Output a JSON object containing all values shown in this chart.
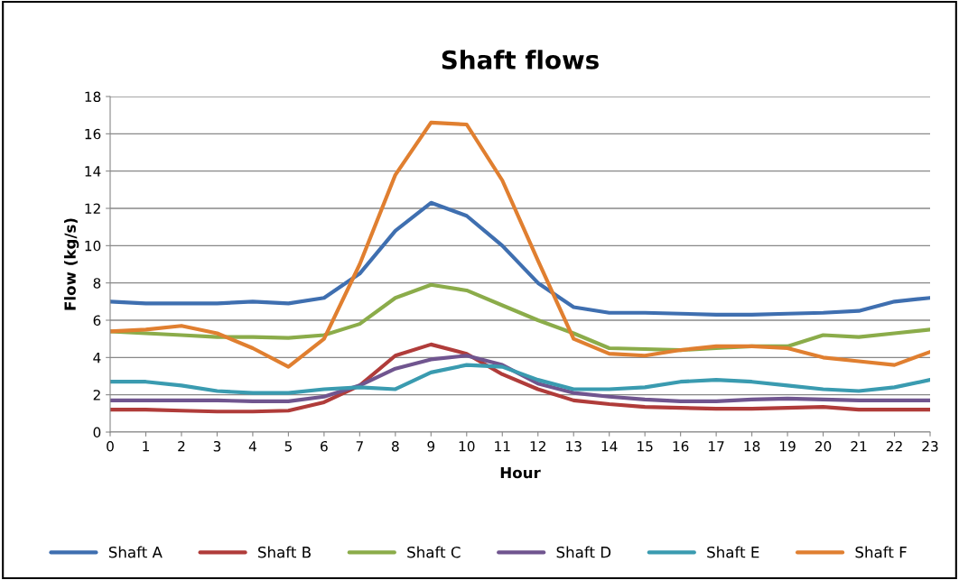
{
  "chart_data": {
    "type": "line",
    "title": "Shaft flows",
    "xlabel": "Hour",
    "ylabel": "Flow (kg/s)",
    "categories": [
      "0",
      "1",
      "2",
      "3",
      "4",
      "5",
      "6",
      "7",
      "8",
      "9",
      "10",
      "11",
      "12",
      "13",
      "14",
      "15",
      "16",
      "17",
      "18",
      "19",
      "20",
      "21",
      "22",
      "23"
    ],
    "ylim": [
      0,
      18
    ],
    "yticks": [
      0,
      2,
      4,
      6,
      8,
      10,
      12,
      14,
      16,
      18
    ],
    "grid": "y",
    "legend": "bottom",
    "marker": "none",
    "line_style": "solid",
    "series": [
      {
        "name": "Shaft A",
        "color": "#3f6fb0",
        "values": [
          7.0,
          6.9,
          6.9,
          6.9,
          7.0,
          6.9,
          7.2,
          8.5,
          10.8,
          12.3,
          11.6,
          10.0,
          8.0,
          6.7,
          6.4,
          6.4,
          6.35,
          6.3,
          6.3,
          6.35,
          6.4,
          6.5,
          7.0,
          7.2
        ]
      },
      {
        "name": "Shaft B",
        "color": "#b03c3a",
        "values": [
          1.2,
          1.2,
          1.15,
          1.1,
          1.1,
          1.15,
          1.6,
          2.5,
          4.1,
          4.7,
          4.2,
          3.1,
          2.3,
          1.7,
          1.5,
          1.35,
          1.3,
          1.25,
          1.25,
          1.3,
          1.35,
          1.2,
          1.2,
          1.2
        ]
      },
      {
        "name": "Shaft C",
        "color": "#8bac4a",
        "values": [
          5.4,
          5.3,
          5.2,
          5.1,
          5.1,
          5.05,
          5.2,
          5.8,
          7.2,
          7.9,
          7.6,
          6.8,
          6.0,
          5.3,
          4.5,
          4.45,
          4.4,
          4.5,
          4.6,
          4.6,
          5.2,
          5.1,
          5.3,
          5.5
        ]
      },
      {
        "name": "Shaft D",
        "color": "#70558f",
        "values": [
          1.7,
          1.7,
          1.7,
          1.7,
          1.65,
          1.65,
          1.9,
          2.5,
          3.4,
          3.9,
          4.1,
          3.6,
          2.6,
          2.1,
          1.9,
          1.75,
          1.65,
          1.65,
          1.75,
          1.8,
          1.75,
          1.7,
          1.7,
          1.7
        ]
      },
      {
        "name": "Shaft E",
        "color": "#3a9bb0",
        "values": [
          2.7,
          2.7,
          2.5,
          2.2,
          2.1,
          2.1,
          2.3,
          2.4,
          2.3,
          3.2,
          3.6,
          3.5,
          2.8,
          2.3,
          2.3,
          2.4,
          2.7,
          2.8,
          2.7,
          2.5,
          2.3,
          2.2,
          2.4,
          2.8
        ]
      },
      {
        "name": "Shaft F",
        "color": "#e07f30",
        "values": [
          5.4,
          5.5,
          5.7,
          5.3,
          4.5,
          3.5,
          5.0,
          9.0,
          13.8,
          16.6,
          16.5,
          13.5,
          9.2,
          5.0,
          4.2,
          4.1,
          4.4,
          4.6,
          4.6,
          4.5,
          4.0,
          3.8,
          3.6,
          4.3
        ]
      }
    ]
  }
}
